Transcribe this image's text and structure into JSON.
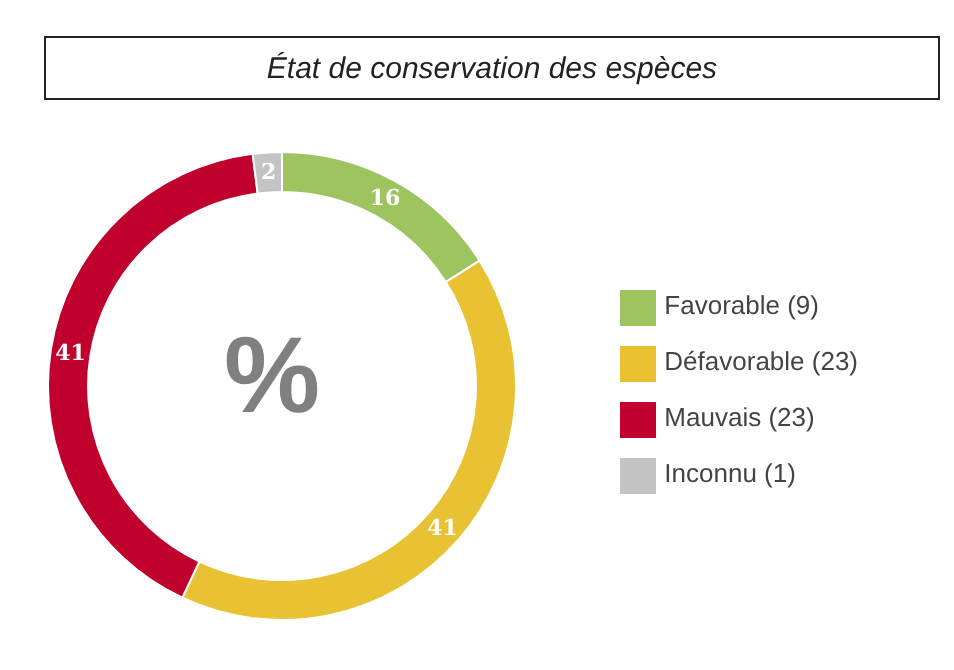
{
  "chart_data": {
    "type": "donut",
    "title": "État de conservation des espèces",
    "categories": [
      "Favorable (9)",
      "Défavorable (23)",
      "Mauvais (23)",
      "Inconnu (1)"
    ],
    "values": [
      16,
      41,
      41,
      2
    ],
    "colors": [
      "#9dc45f",
      "#e8c233",
      "#c0002d",
      "#c4c4c4"
    ],
    "data_labels": true,
    "legend": "right",
    "annotations": [
      "%"
    ]
  }
}
